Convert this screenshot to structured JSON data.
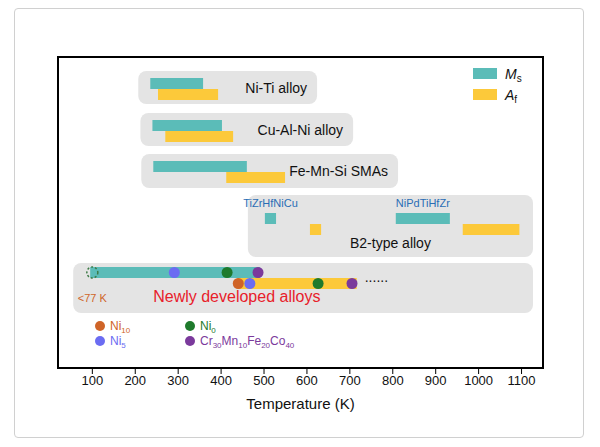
{
  "chart_data": {
    "type": "range_bar",
    "x_label": "Temperature (K)",
    "xlim": [
      20,
      1150
    ],
    "xticks": [
      100,
      200,
      300,
      400,
      500,
      600,
      700,
      800,
      900,
      1000,
      1100
    ],
    "categories": [
      "Ni-Ti alloy",
      "Cu-Al-Ni alloy",
      "Fe-Mn-Si SMAs",
      "B2-type alloy",
      "Newly developed alloys"
    ],
    "series": [
      {
        "name": "Ms",
        "color": "#5bbcb8",
        "values": [
          [
            [
              235,
              358
            ]
          ],
          [
            [
              240,
              402
            ]
          ],
          [
            [
              242,
              460
            ]
          ],
          [
            [
              502,
              528
            ],
            [
              807,
              933
            ]
          ],
          [
            [
              95,
              491
            ]
          ]
        ]
      },
      {
        "name": "Af",
        "color": "#fcc93a",
        "values": [
          [
            [
              253,
              393
            ]
          ],
          [
            [
              270,
              428
            ]
          ],
          [
            [
              412,
              549
            ]
          ],
          [
            [
              607,
              633
            ],
            [
              963,
              1095
            ]
          ],
          [
            [
              437,
              716
            ]
          ]
        ]
      }
    ],
    "range_labels": [
      null,
      null,
      null,
      [
        "TiZrHfNiCu",
        "NiPdTiHfZr"
      ],
      null
    ],
    "points": [
      {
        "name": "Ni10",
        "color": "#cf6428",
        "category": "Newly developed alloys",
        "values": [
          null,
          440
        ]
      },
      {
        "name": "Ni5",
        "color": "#6b6cf2",
        "category": "Newly developed alloys",
        "values": [
          291,
          467
        ]
      },
      {
        "name": "Ni0",
        "color": "#1e7a2c",
        "category": "Newly developed alloys",
        "values": [
          414,
          626
        ]
      },
      {
        "name": "Cr30Mn10Fe20Co40",
        "color": "#7b3a9c",
        "category": "Newly developed alloys",
        "values": [
          486,
          705
        ]
      }
    ],
    "annotations": [
      {
        "text": "<77 K",
        "x": 100,
        "marker": "dashed_circle",
        "color": "#cf6428"
      },
      {
        "text": "......"
      }
    ],
    "legend": "upper right"
  }
}
